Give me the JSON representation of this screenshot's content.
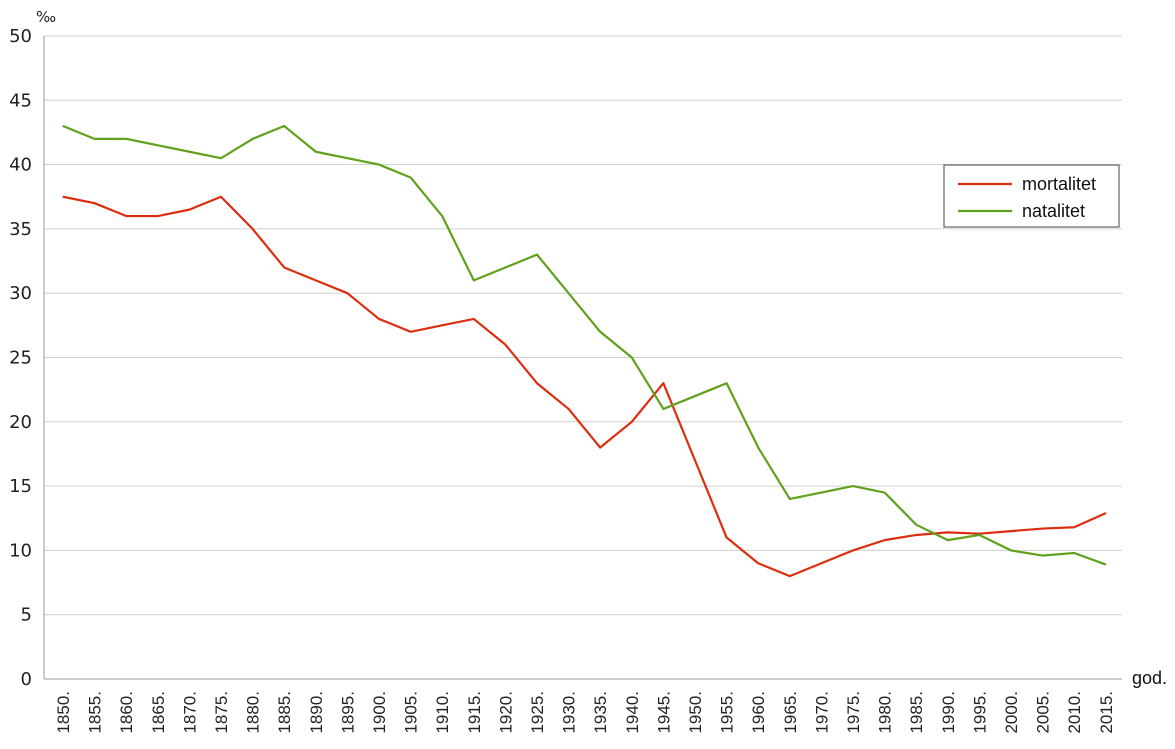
{
  "chart_data": {
    "type": "line",
    "ylabel": "‰",
    "xlabel": "god.",
    "ylim": [
      0,
      50
    ],
    "yticks": [
      0,
      5,
      10,
      15,
      20,
      25,
      30,
      35,
      40,
      45,
      50
    ],
    "grid": true,
    "legend_position": "right",
    "categories": [
      "1850.",
      "1855.",
      "1860.",
      "1865.",
      "1870.",
      "1875.",
      "1880.",
      "1885.",
      "1890.",
      "1895.",
      "1900.",
      "1905.",
      "1910.",
      "1915.",
      "1920.",
      "1925.",
      "1930.",
      "1935.",
      "1940.",
      "1945.",
      "1950.",
      "1955.",
      "1960.",
      "1965.",
      "1970.",
      "1975.",
      "1980.",
      "1985.",
      "1990.",
      "1995.",
      "2000.",
      "2005.",
      "2010.",
      "2015."
    ],
    "series": [
      {
        "name": "mortalitet",
        "color": "#dd2d0f",
        "values": [
          37.5,
          37,
          36,
          36,
          36.5,
          37.5,
          35,
          32,
          31,
          30,
          28,
          27,
          27.5,
          28,
          26,
          23,
          21,
          18,
          20,
          23,
          17,
          11,
          9,
          8,
          9,
          10,
          10.8,
          11.2,
          11.4,
          11.3,
          11.5,
          11.7,
          11.8,
          12.9
        ]
      },
      {
        "name": "natalitet",
        "color": "#5fa11a",
        "values": [
          43,
          42,
          42,
          41.5,
          41,
          40.5,
          42,
          43,
          41,
          40.5,
          40,
          39,
          36,
          31,
          32,
          33,
          30,
          27,
          25,
          21,
          22,
          23,
          18,
          14,
          14.5,
          15,
          14.5,
          12,
          10.8,
          11.2,
          10,
          9.6,
          9.8,
          8.9
        ]
      }
    ]
  }
}
